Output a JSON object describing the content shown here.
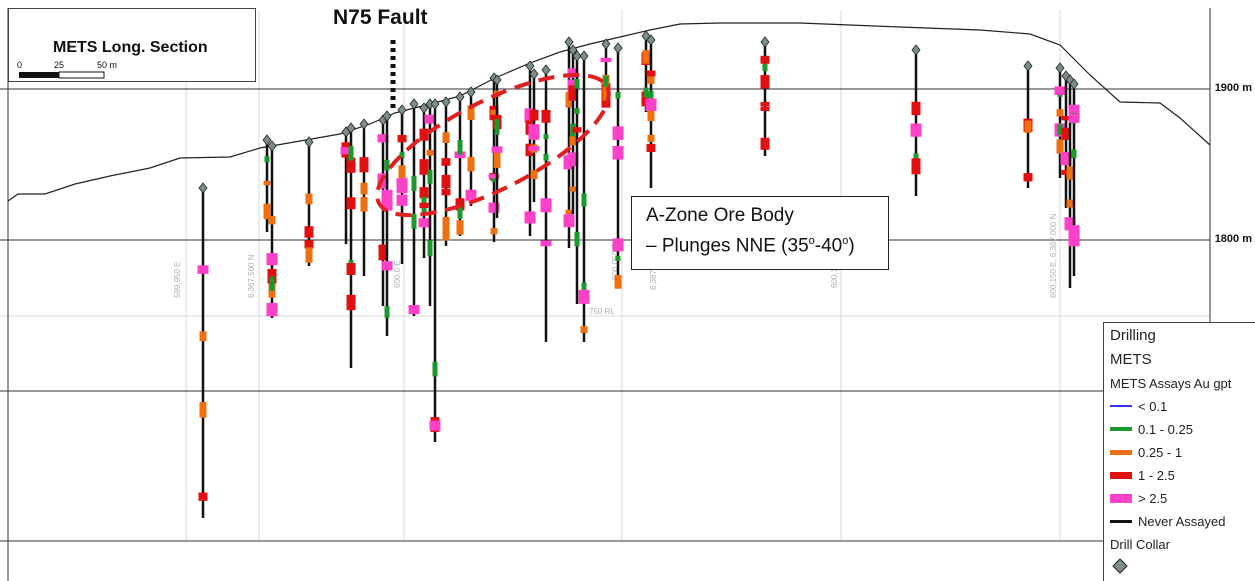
{
  "title": "METS Long. Section",
  "scale_bar": {
    "labels": [
      "0",
      "25",
      "50 m"
    ]
  },
  "fault_label": "N75 Fault",
  "ore_body": {
    "line1": "A-Zone Ore Body",
    "line2": "– Plunges NNE (35o-40o)"
  },
  "elevations": [
    "1900 m",
    "1800 m"
  ],
  "grid_labels": [
    "599,950 E",
    "6,367,500 N",
    "600,0 E",
    "600,050 E",
    "6,367,2",
    "750 RL",
    "600,10",
    "600,150 E, 6,367,000 N"
  ],
  "legend": {
    "heading": "Drilling",
    "group": "METS",
    "sub": "METS Assays Au gpt",
    "items": [
      {
        "label": "< 0.1",
        "color": "#3333ff",
        "weight": 1
      },
      {
        "label": "0.1 - 0.25",
        "color": "#1a9a2a",
        "weight": 4
      },
      {
        "label": "0.25 - 1",
        "color": "#f07010",
        "weight": 5
      },
      {
        "label": "1 - 2.5",
        "color": "#e01010",
        "weight": 7
      },
      {
        "label": "> 2.5",
        "color": "#ff40c8",
        "weight": 9
      },
      {
        "label": "Never Assayed",
        "color": "#111111",
        "weight": 3
      }
    ],
    "collar_label": "Drill Collar",
    "collar_color": "#7a8f88"
  }
}
